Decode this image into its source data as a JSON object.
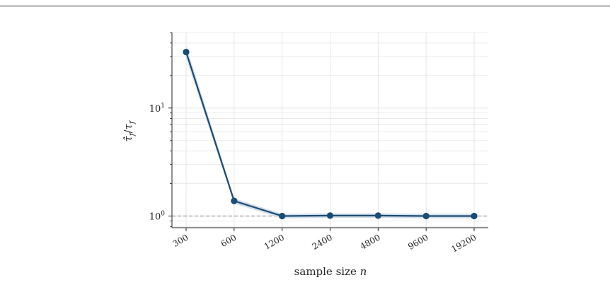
{
  "chart_data": {
    "type": "line",
    "title": "",
    "xlabel": "sample size",
    "xlabel_var": "n",
    "ylabel": "τ̂_f / τ_f",
    "ylabel_display": {
      "num": "τ̂",
      "sub": "f",
      "slash": "/",
      "den": "τ",
      "sub2": "f"
    },
    "x_scale": "log2",
    "y_scale": "log10",
    "ylim": [
      0.78,
      50
    ],
    "categories": [
      "300",
      "600",
      "1200",
      "2400",
      "4800",
      "9600",
      "19200"
    ],
    "x": [
      300,
      600,
      1200,
      2400,
      4800,
      9600,
      19200
    ],
    "yticks": [
      1,
      10
    ],
    "ytick_labels": [
      {
        "base": "10",
        "exp": "0"
      },
      {
        "base": "10",
        "exp": "1"
      }
    ],
    "series": [
      {
        "values": [
          33,
          1.38,
          1.0,
          1.01,
          1.01,
          1.0,
          1.0
        ],
        "lower": [
          29,
          1.3,
          0.95,
          0.96,
          0.96,
          0.95,
          0.95
        ],
        "upper": [
          38,
          1.46,
          1.05,
          1.06,
          1.06,
          1.05,
          1.05
        ]
      }
    ],
    "reference_line": {
      "y": 1,
      "style": "dashed"
    },
    "grid": true,
    "colors": {
      "line": "#1b4b72",
      "band": "#c5d4e3",
      "reference": "#9a9a9a",
      "grid": "#e6e6e6"
    }
  }
}
